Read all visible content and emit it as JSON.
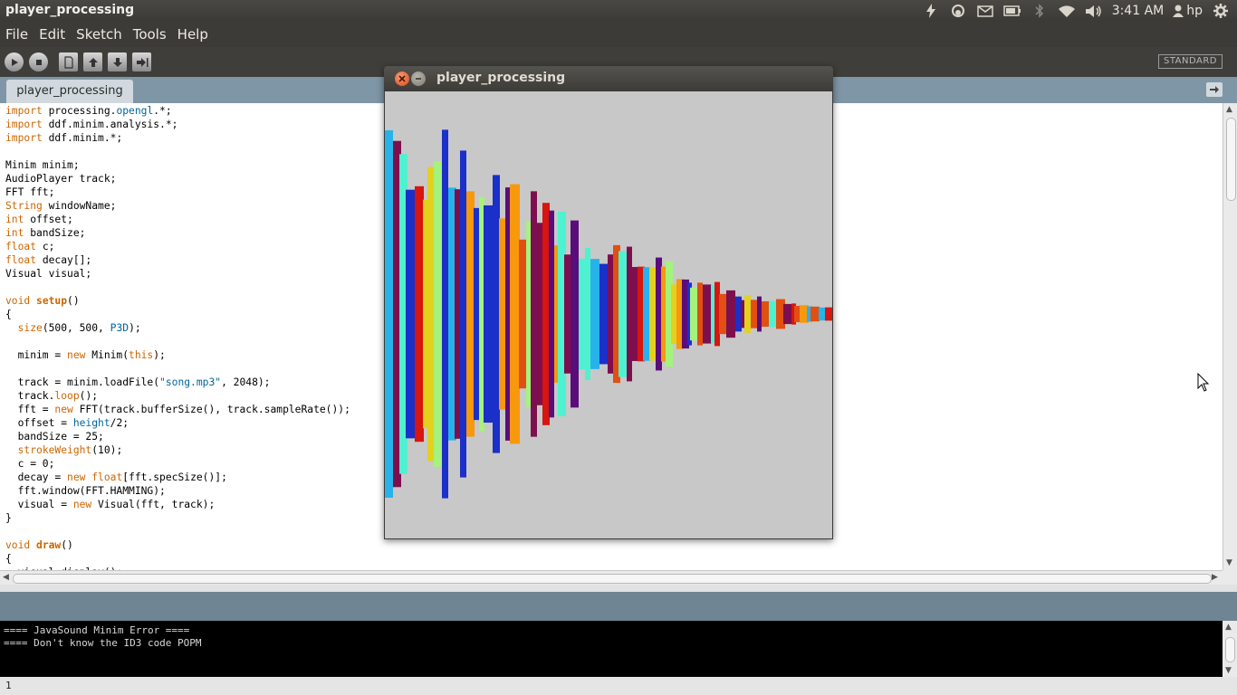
{
  "top_panel": {
    "app_title": "player_processing",
    "clock": "3:41 AM",
    "user": "hp",
    "tray_icons": [
      "lightning-icon",
      "network-icon",
      "mail-icon",
      "battery-icon",
      "bluetooth-icon",
      "wifi-icon",
      "volume-icon",
      "user-icon",
      "gear-icon"
    ]
  },
  "menubar": {
    "items": [
      "File",
      "Edit",
      "Sketch",
      "Tools",
      "Help"
    ]
  },
  "toolbar": {
    "buttons": [
      "run-icon",
      "stop-icon",
      "new-icon",
      "open-icon",
      "save-icon",
      "export-icon"
    ],
    "mode": "STANDARD"
  },
  "tabs": {
    "active": "player_processing"
  },
  "editor": {
    "code_lines": [
      "import processing.opengl.*;",
      "import ddf.minim.analysis.*;",
      "import ddf.minim.*;",
      "",
      "Minim minim;",
      "AudioPlayer track;",
      "FFT fft;",
      "String windowName;",
      "int offset;",
      "int bandSize;",
      "float c;",
      "float decay[];",
      "Visual visual;",
      "",
      "void setup()",
      "{",
      "  size(500, 500, P3D);",
      "",
      "  minim = new Minim(this);",
      "",
      "  track = minim.loadFile(\"song.mp3\", 2048);",
      "  track.loop();",
      "  fft = new FFT(track.bufferSize(), track.sampleRate());",
      "  offset = height/2;",
      "  bandSize = 25;",
      "  strokeWeight(10);",
      "  c = 0;",
      "  decay = new float[fft.specSize()];",
      "  fft.window(FFT.HAMMING);",
      "  visual = new Visual(fft, track);",
      "}",
      "",
      "void draw()",
      "{",
      "  visual.display();"
    ]
  },
  "console": {
    "lines": [
      "==== JavaSound Minim Error ====",
      "==== Don't know the ID3 code POPM"
    ]
  },
  "status": {
    "line_number": "1"
  },
  "sketch_window": {
    "title": "player_processing",
    "background": "#c8c8c8",
    "palette": [
      "#7d0f4e",
      "#27b2ea",
      "#4ff2d0",
      "#e24f12",
      "#1b2fc9",
      "#d8150f",
      "#a3f37c",
      "#f7980d",
      "#5a0d7a",
      "#e3d11e"
    ]
  },
  "colors": {
    "panel": "#3c3b37",
    "tabbar": "#7f96a6",
    "console_bg": "#000000"
  }
}
